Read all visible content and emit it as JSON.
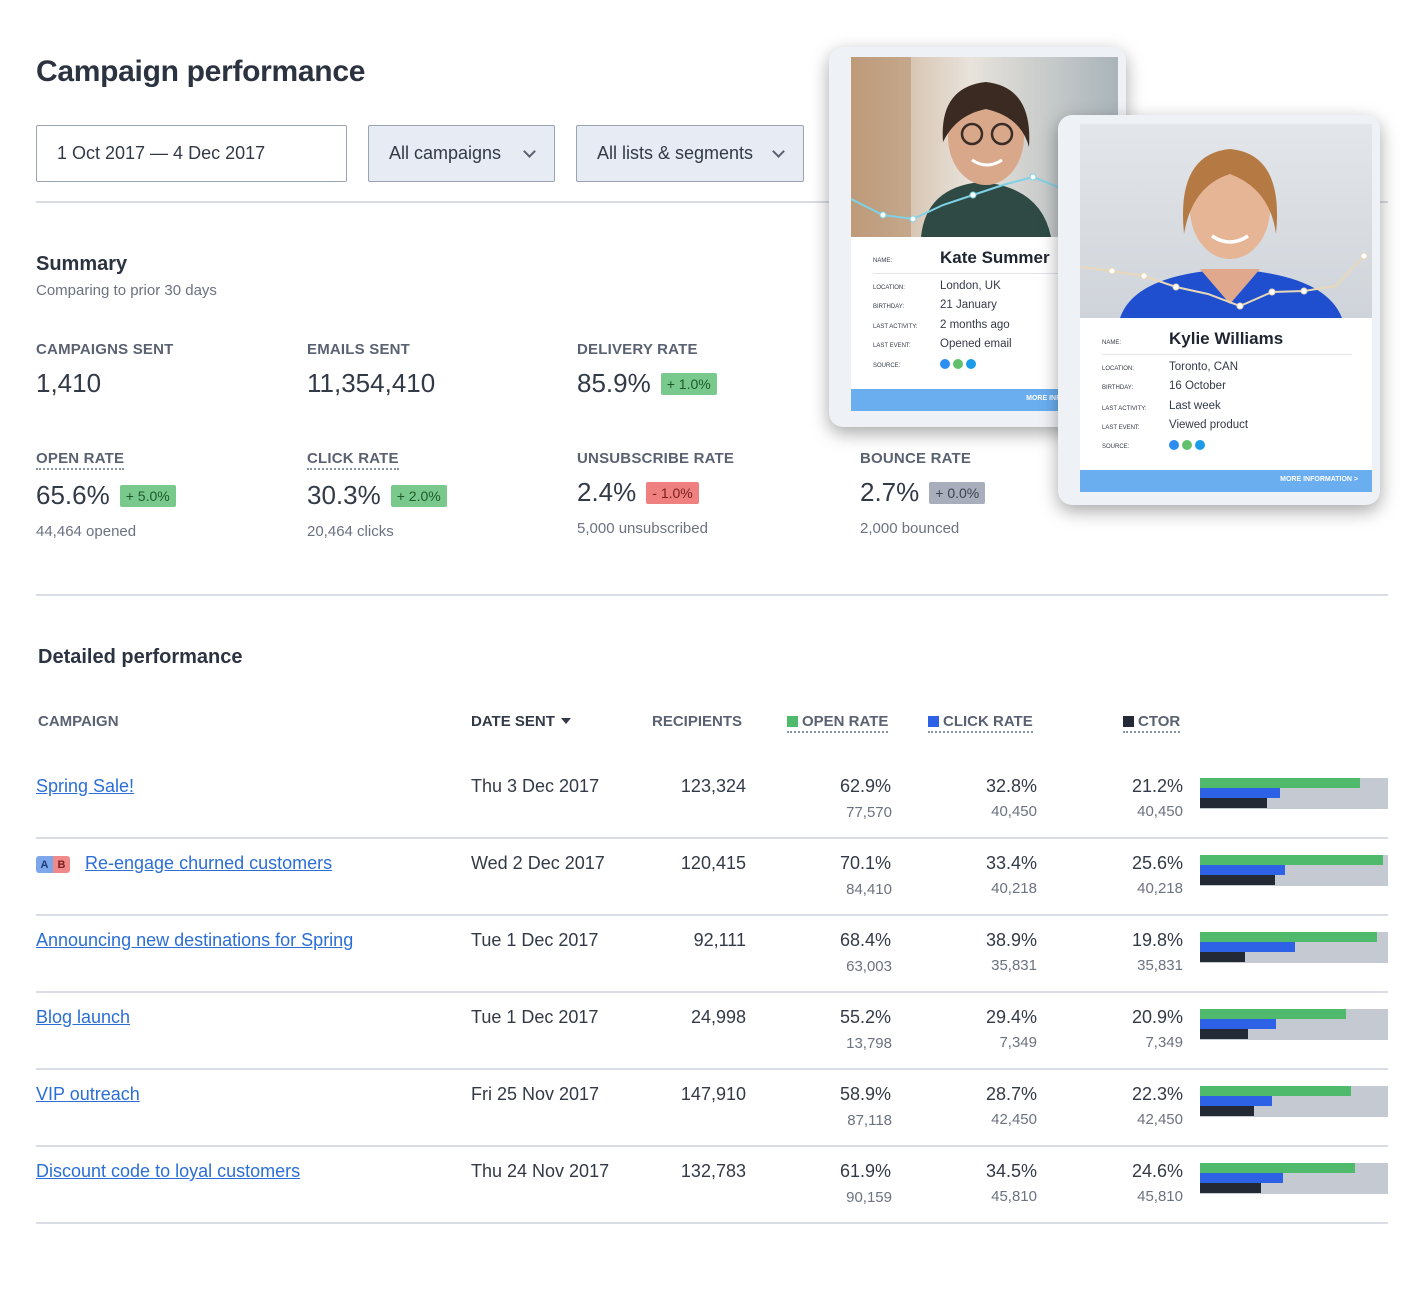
{
  "page": {
    "title": "Campaign performance"
  },
  "filters": {
    "date_range": "1 Oct 2017 — 4 Dec 2017",
    "campaigns": "All campaigns",
    "lists": "All lists & segments"
  },
  "summary": {
    "title": "Summary",
    "subtitle": "Comparing to prior 30 days",
    "campaigns_sent": {
      "label": "CAMPAIGNS SENT",
      "value": "1,410"
    },
    "emails_sent": {
      "label": "EMAILS SENT",
      "value": "11,354,410"
    },
    "delivery_rate": {
      "label": "DELIVERY RATE",
      "value": "85.9%",
      "change": "+ 1.0%"
    },
    "open_rate": {
      "label": "OPEN RATE",
      "value": "65.6%",
      "change": "+ 5.0%",
      "sub": "44,464 opened"
    },
    "click_rate": {
      "label": "CLICK RATE",
      "value": "30.3%",
      "change": "+ 2.0%",
      "sub": "20,464 clicks"
    },
    "unsubscribe_rate": {
      "label": "UNSUBSCRIBE RATE",
      "value": "2.4%",
      "change": "- 1.0%",
      "sub": "5,000 unsubscribed"
    },
    "bounce_rate": {
      "label": "BOUNCE RATE",
      "value": "2.7%",
      "change": "+ 0.0%",
      "sub": "2,000 bounced"
    }
  },
  "detail": {
    "title": "Detailed performance",
    "columns": {
      "campaign": "CAMPAIGN",
      "date_sent": "DATE SENT",
      "recipients": "RECIPIENTS",
      "open_rate": "OPEN RATE",
      "click_rate": "CLICK RATE",
      "ctor": "CTOR"
    },
    "colors": {
      "open": "#4fb96c",
      "click": "#2e62e6",
      "ctor": "#232a36"
    },
    "ab_badge": {
      "a": "A",
      "b": "B"
    },
    "rows": [
      {
        "name": "Spring Sale!",
        "date": "Thu 3 Dec 2017",
        "recipients": "123,324",
        "open": "62.9%",
        "open_count": "77,570",
        "click": "32.8%",
        "click_count": "40,450",
        "ctor": "21.2%",
        "ctor_count": "40,450",
        "open_frac": 0.849,
        "click_frac": 0.426,
        "ctor_frac": 0.359
      },
      {
        "name": "Re-engage churned customers",
        "ab": true,
        "date": "Wed 2 Dec 2017",
        "recipients": "120,415",
        "open": "70.1%",
        "open_count": "84,410",
        "click": "33.4%",
        "click_count": "40,218",
        "ctor": "25.6%",
        "ctor_count": "40,218",
        "open_frac": 0.973,
        "click_frac": 0.452,
        "ctor_frac": 0.399
      },
      {
        "name": "Announcing new destinations for Spring",
        "date": "Tue 1 Dec 2017",
        "recipients": "92,111",
        "open": "68.4%",
        "open_count": "63,003",
        "click": "38.9%",
        "click_count": "35,831",
        "ctor": "19.8%",
        "ctor_count": "35,831",
        "open_frac": 0.941,
        "click_frac": 0.505,
        "ctor_frac": 0.239
      },
      {
        "name": "Blog launch",
        "date": "Tue 1 Dec 2017",
        "recipients": "24,998",
        "open": "55.2%",
        "open_count": "13,798",
        "click": "29.4%",
        "click_count": "7,349",
        "ctor": "20.9%",
        "ctor_count": "7,349",
        "open_frac": 0.777,
        "click_frac": 0.404,
        "ctor_frac": 0.255
      },
      {
        "name": "VIP outreach",
        "date": "Fri 25 Nov 2017",
        "recipients": "147,910",
        "open": "58.9%",
        "open_count": "87,118",
        "click": "28.7%",
        "click_count": "42,450",
        "ctor": "22.3%",
        "ctor_count": "42,450",
        "open_frac": 0.803,
        "click_frac": 0.383,
        "ctor_frac": 0.287
      },
      {
        "name": "Discount code to loyal customers",
        "date": "Thu 24 Nov 2017",
        "recipients": "132,783",
        "open": "61.9%",
        "open_count": "90,159",
        "click": "34.5%",
        "click_count": "45,810",
        "ctor": "24.6%",
        "ctor_count": "45,810",
        "open_frac": 0.824,
        "click_frac": 0.441,
        "ctor_frac": 0.324
      }
    ]
  },
  "profiles": {
    "kate": {
      "name": "Kate Summer",
      "labels": {
        "name": "NAME:",
        "location": "LOCATION:",
        "birthday": "BIRTHDAY:",
        "last_activity": "LAST ACTIVITY:",
        "last_event": "LAST EVENT:",
        "source": "SOURCE:"
      },
      "location": "London, UK",
      "birthday": "21 January",
      "last_activity": "2 months ago",
      "last_event": "Opened email",
      "more": "MORE INFORMATION >"
    },
    "kylie": {
      "name": "Kylie Williams",
      "labels": {
        "name": "NAME:",
        "location": "LOCATION:",
        "birthday": "BIRTHDAY:",
        "last_activity": "LAST ACTIVITY:",
        "last_event": "LAST EVENT:",
        "source": "SOURCE:"
      },
      "location": "Toronto, CAN",
      "birthday": "16 October",
      "last_activity": "Last week",
      "last_event": "Viewed product",
      "more": "MORE INFORMATION >"
    },
    "source_icons": [
      "mail-icon",
      "shop-icon",
      "chat-icon"
    ],
    "source_colors": [
      "#2e8ef0",
      "#62c06c",
      "#1c9be8"
    ]
  }
}
